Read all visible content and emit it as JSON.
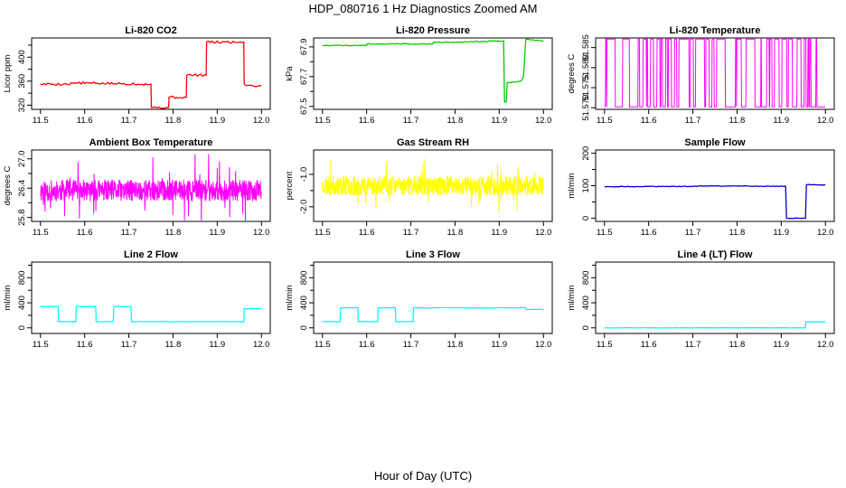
{
  "figure": {
    "title": "HDP_080716  1 Hz Diagnostics Zoomed AM",
    "xlabel": "Hour of Day (UTC)"
  },
  "chart_data": [
    {
      "type": "line",
      "title": "Li-820 CO2",
      "ylabel": "Licor ppm",
      "color": "#ff0000",
      "xlim": [
        11.48,
        12.02
      ],
      "ylim": [
        313,
        432
      ],
      "xticks": [
        "11.5",
        "11.6",
        "11.7",
        "11.8",
        "11.9",
        "12.0"
      ],
      "yticks": [
        320,
        360,
        400
      ],
      "ytick_labels": [
        "320",
        "360",
        "400"
      ],
      "minor_yticks": [
        340,
        380,
        420
      ],
      "noise": 2,
      "x": [
        11.5,
        11.56,
        11.58,
        11.75,
        11.751,
        11.79,
        11.791,
        11.83,
        11.831,
        11.875,
        11.876,
        11.96,
        11.961,
        11.97,
        12.0
      ],
      "y": [
        355,
        355,
        357,
        355,
        316,
        316,
        333,
        333,
        370,
        370,
        425,
        425,
        355,
        353,
        352
      ]
    },
    {
      "type": "line",
      "title": "Li-820 Pressure",
      "ylabel": "kPa",
      "color": "#00cc00",
      "xlim": [
        11.48,
        12.02
      ],
      "ylim": [
        67.48,
        67.96
      ],
      "xticks": [
        "11.5",
        "11.6",
        "11.7",
        "11.8",
        "11.9",
        "12.0"
      ],
      "yticks": [
        67.5,
        67.7,
        67.9
      ],
      "ytick_labels": [
        "67.5",
        "67.7",
        "67.9"
      ],
      "minor_yticks": [
        67.6,
        67.8
      ],
      "noise": 0.003,
      "x": [
        11.5,
        11.6,
        11.601,
        11.75,
        11.751,
        11.91,
        11.912,
        11.916,
        11.918,
        11.95,
        11.955,
        11.96,
        12.0
      ],
      "y": [
        67.91,
        67.91,
        67.92,
        67.92,
        67.93,
        67.94,
        67.53,
        67.53,
        67.66,
        67.67,
        67.7,
        67.95,
        67.94
      ]
    },
    {
      "type": "line",
      "title": "Li-820 Temperature",
      "ylabel": "degrees C",
      "color": "#ff00ff",
      "xlim": [
        11.48,
        12.02
      ],
      "ylim": [
        51.5696,
        51.5874
      ],
      "xticks": [
        "11.5",
        "11.6",
        "11.7",
        "11.8",
        "11.9",
        "12.0"
      ],
      "yticks": [
        51.57,
        51.575,
        51.58,
        51.585
      ],
      "ytick_labels": [
        "51.570",
        "51.575",
        "51.580",
        "51.585"
      ],
      "binary_levels": [
        51.5702,
        51.5871
      ],
      "seed": 7
    },
    {
      "type": "line",
      "title": "Ambient Box Temperature",
      "ylabel": "degrees C",
      "color": "#ff00ff",
      "xlim": [
        11.48,
        12.02
      ],
      "ylim": [
        25.72,
        27.18
      ],
      "xticks": [
        "11.5",
        "11.6",
        "11.7",
        "11.8",
        "11.9",
        "12.0"
      ],
      "yticks": [
        25.8,
        26.4,
        27.0
      ],
      "ytick_labels": [
        "25.8",
        "26.4",
        "27.0"
      ],
      "minor_yticks": [
        26.1,
        26.7
      ],
      "noise_band": {
        "center": 26.35,
        "spread": 0.22,
        "spike": 0.75
      },
      "seed": 11
    },
    {
      "type": "line",
      "title": "Gas Stream RH",
      "ylabel": "percent",
      "color": "#ffff00",
      "xlim": [
        11.48,
        12.02
      ],
      "ylim": [
        -2.45,
        -0.25
      ],
      "xticks": [
        "11.5",
        "11.6",
        "11.7",
        "11.8",
        "11.9",
        "12.0"
      ],
      "yticks": [
        -2,
        -1
      ],
      "ytick_labels": [
        "-2.0",
        "-1.0"
      ],
      "minor_yticks": [
        -1.5
      ],
      "noise_band": {
        "center": -1.35,
        "spread": 0.3,
        "spike": 0.9
      },
      "seed": 23
    },
    {
      "type": "line",
      "title": "Sample Flow",
      "ylabel": "ml/min",
      "color": "#0000cc",
      "xlim": [
        11.48,
        12.02
      ],
      "ylim": [
        -10,
        210
      ],
      "xticks": [
        "11.5",
        "11.6",
        "11.7",
        "11.8",
        "11.9",
        "12.0"
      ],
      "yticks": [
        0,
        100,
        200
      ],
      "ytick_labels": [
        "0",
        "100",
        "200"
      ],
      "minor_yticks": [
        50,
        150
      ],
      "noise": 1,
      "x": [
        11.5,
        11.7,
        11.75,
        11.8,
        11.91,
        11.912,
        11.955,
        11.957,
        12.0
      ],
      "y": [
        97,
        98,
        99,
        99,
        98,
        0,
        0,
        103,
        103
      ]
    },
    {
      "type": "line",
      "title": "Line 2 Flow",
      "ylabel": "ml/min",
      "color": "#00ffff",
      "xlim": [
        11.48,
        12.02
      ],
      "ylim": [
        -90,
        1050
      ],
      "xticks": [
        "11.5",
        "11.6",
        "11.7",
        "11.8",
        "11.9",
        "12.0"
      ],
      "yticks": [
        0,
        400,
        800
      ],
      "ytick_labels": [
        "0",
        "400",
        "800"
      ],
      "minor_yticks": [
        200,
        600,
        1000
      ],
      "noise": 4,
      "x": [
        11.5,
        11.54,
        11.541,
        11.58,
        11.581,
        11.625,
        11.626,
        11.665,
        11.666,
        11.705,
        11.706,
        11.96,
        11.961,
        12.0
      ],
      "y": [
        340,
        340,
        100,
        100,
        340,
        340,
        100,
        100,
        340,
        340,
        100,
        100,
        305,
        305
      ]
    },
    {
      "type": "line",
      "title": "Line 3 Flow",
      "ylabel": "ml/min",
      "color": "#00ffff",
      "xlim": [
        11.48,
        12.02
      ],
      "ylim": [
        -90,
        1050
      ],
      "xticks": [
        "11.5",
        "11.6",
        "11.7",
        "11.8",
        "11.9",
        "12.0"
      ],
      "yticks": [
        0,
        400,
        800
      ],
      "ytick_labels": [
        "0",
        "400",
        "800"
      ],
      "minor_yticks": [
        200,
        600,
        1000
      ],
      "noise": 4,
      "x": [
        11.5,
        11.54,
        11.541,
        11.58,
        11.581,
        11.625,
        11.626,
        11.665,
        11.666,
        11.705,
        11.706,
        11.96,
        11.961,
        12.0
      ],
      "y": [
        100,
        100,
        320,
        320,
        100,
        100,
        320,
        320,
        100,
        100,
        320,
        320,
        295,
        295
      ]
    },
    {
      "type": "line",
      "title": "Line 4 (LT) Flow",
      "ylabel": "ml/min",
      "color": "#00ffff",
      "xlim": [
        11.48,
        12.02
      ],
      "ylim": [
        -90,
        1050
      ],
      "xticks": [
        "11.5",
        "11.6",
        "11.7",
        "11.8",
        "11.9",
        "12.0"
      ],
      "yticks": [
        0,
        400,
        800
      ],
      "ytick_labels": [
        "0",
        "400",
        "800"
      ],
      "minor_yticks": [
        200,
        600,
        1000
      ],
      "noise": 2,
      "x": [
        11.5,
        11.955,
        11.956,
        12.0
      ],
      "y": [
        0,
        0,
        95,
        95
      ]
    }
  ]
}
